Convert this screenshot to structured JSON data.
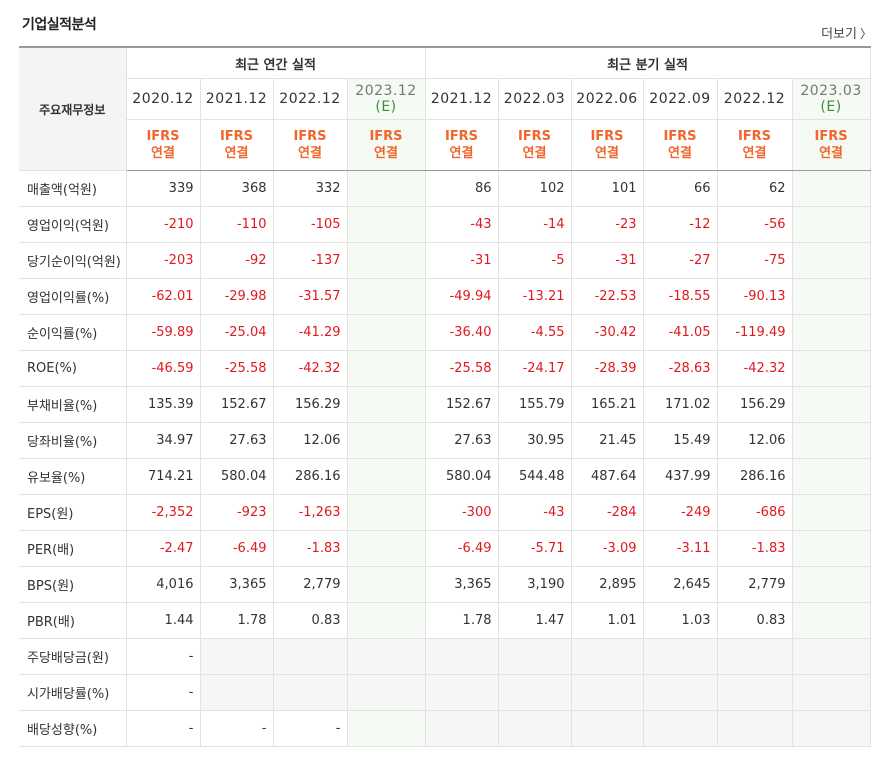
{
  "title": "기업실적분석",
  "more_label": "더보기",
  "head": {
    "row_label": "주요재무정보",
    "annual_group": "최근 연간 실적",
    "quarter_group": "최근 분기 실적",
    "ifrs_line1": "IFRS",
    "ifrs_line2": "연결"
  },
  "annual_years": [
    {
      "label": "2020.12",
      "est": ""
    },
    {
      "label": "2021.12",
      "est": ""
    },
    {
      "label": "2022.12",
      "est": ""
    },
    {
      "label": "2023.12",
      "est": "(E)"
    }
  ],
  "quarter_periods": [
    {
      "label": "2021.12",
      "est": ""
    },
    {
      "label": "2022.03",
      "est": ""
    },
    {
      "label": "2022.06",
      "est": ""
    },
    {
      "label": "2022.09",
      "est": ""
    },
    {
      "label": "2022.12",
      "est": ""
    },
    {
      "label": "2023.03",
      "est": "(E)"
    }
  ],
  "rows": [
    {
      "label": "매출액(억원)",
      "values": [
        "339",
        "368",
        "332",
        "",
        "86",
        "102",
        "101",
        "66",
        "62",
        ""
      ]
    },
    {
      "label": "영업이익(억원)",
      "values": [
        "-210",
        "-110",
        "-105",
        "",
        "-43",
        "-14",
        "-23",
        "-12",
        "-56",
        ""
      ]
    },
    {
      "label": "당기순이익(억원)",
      "values": [
        "-203",
        "-92",
        "-137",
        "",
        "-31",
        "-5",
        "-31",
        "-27",
        "-75",
        ""
      ]
    },
    {
      "label": "영업이익률(%)",
      "values": [
        "-62.01",
        "-29.98",
        "-31.57",
        "",
        "-49.94",
        "-13.21",
        "-22.53",
        "-18.55",
        "-90.13",
        ""
      ]
    },
    {
      "label": "순이익률(%)",
      "values": [
        "-59.89",
        "-25.04",
        "-41.29",
        "",
        "-36.40",
        "-4.55",
        "-30.42",
        "-41.05",
        "-119.49",
        ""
      ]
    },
    {
      "label": "ROE(%)",
      "values": [
        "-46.59",
        "-25.58",
        "-42.32",
        "",
        "-25.58",
        "-24.17",
        "-28.39",
        "-28.63",
        "-42.32",
        ""
      ]
    },
    {
      "label": "부채비율(%)",
      "values": [
        "135.39",
        "152.67",
        "156.29",
        "",
        "152.67",
        "155.79",
        "165.21",
        "171.02",
        "156.29",
        ""
      ]
    },
    {
      "label": "당좌비율(%)",
      "values": [
        "34.97",
        "27.63",
        "12.06",
        "",
        "27.63",
        "30.95",
        "21.45",
        "15.49",
        "12.06",
        ""
      ]
    },
    {
      "label": "유보율(%)",
      "values": [
        "714.21",
        "580.04",
        "286.16",
        "",
        "580.04",
        "544.48",
        "487.64",
        "437.99",
        "286.16",
        ""
      ]
    },
    {
      "label": "EPS(원)",
      "values": [
        "-2,352",
        "-923",
        "-1,263",
        "",
        "-300",
        "-43",
        "-284",
        "-249",
        "-686",
        ""
      ]
    },
    {
      "label": "PER(배)",
      "values": [
        "-2.47",
        "-6.49",
        "-1.83",
        "",
        "-6.49",
        "-5.71",
        "-3.09",
        "-3.11",
        "-1.83",
        ""
      ]
    },
    {
      "label": "BPS(원)",
      "values": [
        "4,016",
        "3,365",
        "2,779",
        "",
        "3,365",
        "3,190",
        "2,895",
        "2,645",
        "2,779",
        ""
      ]
    },
    {
      "label": "PBR(배)",
      "values": [
        "1.44",
        "1.78",
        "0.83",
        "",
        "1.78",
        "1.47",
        "1.01",
        "1.03",
        "0.83",
        ""
      ]
    },
    {
      "label": "주당배당금(원)",
      "values": [
        "-",
        null,
        null,
        null,
        null,
        null,
        null,
        null,
        null,
        null
      ]
    },
    {
      "label": "시가배당률(%)",
      "values": [
        "-",
        null,
        null,
        null,
        null,
        null,
        null,
        null,
        null,
        null
      ]
    },
    {
      "label": "배당성향(%)",
      "values": [
        "-",
        "-",
        "-",
        "",
        null,
        null,
        null,
        null,
        null,
        null
      ]
    }
  ]
}
